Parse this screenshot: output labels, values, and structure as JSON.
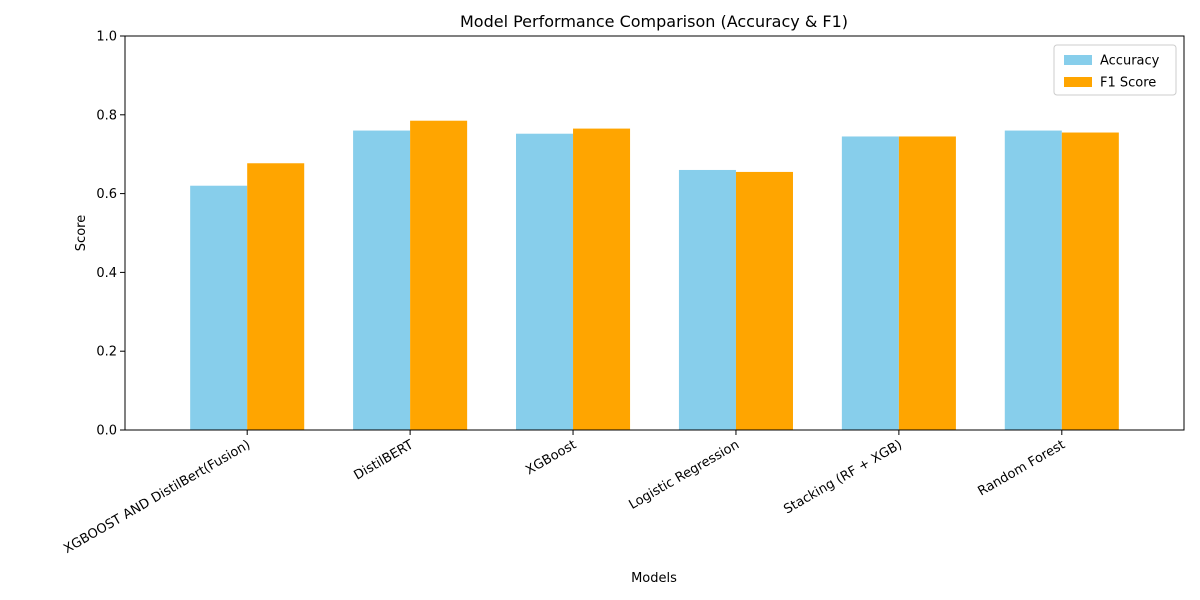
{
  "chart_data": {
    "type": "bar",
    "title": "Model Performance Comparison (Accuracy & F1)",
    "xlabel": "Models",
    "ylabel": "Score",
    "ylim": [
      0,
      1.0
    ],
    "yticks": [
      "0.0",
      "0.2",
      "0.4",
      "0.6",
      "0.8",
      "1.0"
    ],
    "categories": [
      "XGBOOST AND DistilBert(Fusion)",
      "DistilBERT",
      "XGBoost",
      "Logistic Regression",
      "Stacking (RF + XGB)",
      "Random Forest"
    ],
    "series": [
      {
        "name": "Accuracy",
        "color": "#87ceeb",
        "values": [
          0.62,
          0.76,
          0.752,
          0.66,
          0.745,
          0.76
        ]
      },
      {
        "name": "F1 Score",
        "color": "#ffa500",
        "values": [
          0.677,
          0.785,
          0.765,
          0.655,
          0.745,
          0.755
        ]
      }
    ],
    "grid": false,
    "legend_position": "top-right"
  }
}
